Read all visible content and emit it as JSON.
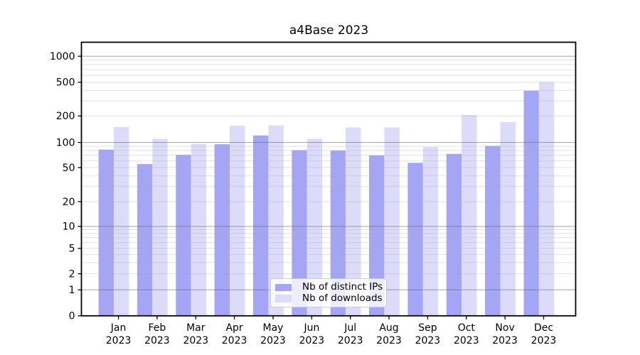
{
  "chart_data": {
    "type": "bar",
    "title": "a4Base 2023",
    "categories": [
      {
        "label": "Jan",
        "sublabel": "2023"
      },
      {
        "label": "Feb",
        "sublabel": "2023"
      },
      {
        "label": "Mar",
        "sublabel": "2023"
      },
      {
        "label": "Apr",
        "sublabel": "2023"
      },
      {
        "label": "May",
        "sublabel": "2023"
      },
      {
        "label": "Jun",
        "sublabel": "2023"
      },
      {
        "label": "Jul",
        "sublabel": "2023"
      },
      {
        "label": "Aug",
        "sublabel": "2023"
      },
      {
        "label": "Sep",
        "sublabel": "2023"
      },
      {
        "label": "Oct",
        "sublabel": "2023"
      },
      {
        "label": "Nov",
        "sublabel": "2023"
      },
      {
        "label": "Dec",
        "sublabel": "2023"
      }
    ],
    "series": [
      {
        "name": "Nb of distinct IPs",
        "color": "#a5a5f5",
        "values": [
          82,
          55,
          71,
          95,
          120,
          81,
          80,
          70,
          57,
          73,
          91,
          398
        ]
      },
      {
        "name": "Nb of downloads",
        "color": "#dcdcfa",
        "values": [
          150,
          110,
          96,
          155,
          156,
          110,
          148,
          148,
          88,
          205,
          170,
          505
        ]
      }
    ],
    "y_axis": {
      "scale": "symlog",
      "ticks": [
        0,
        1,
        2,
        5,
        10,
        20,
        50,
        100,
        200,
        500,
        1000
      ],
      "major_gridline_values": [
        1,
        10,
        100,
        1000
      ],
      "ylim": [
        0,
        1500
      ]
    },
    "legend_position": "lower center",
    "grid": "horizontal major + log minor, drawn over bars"
  }
}
